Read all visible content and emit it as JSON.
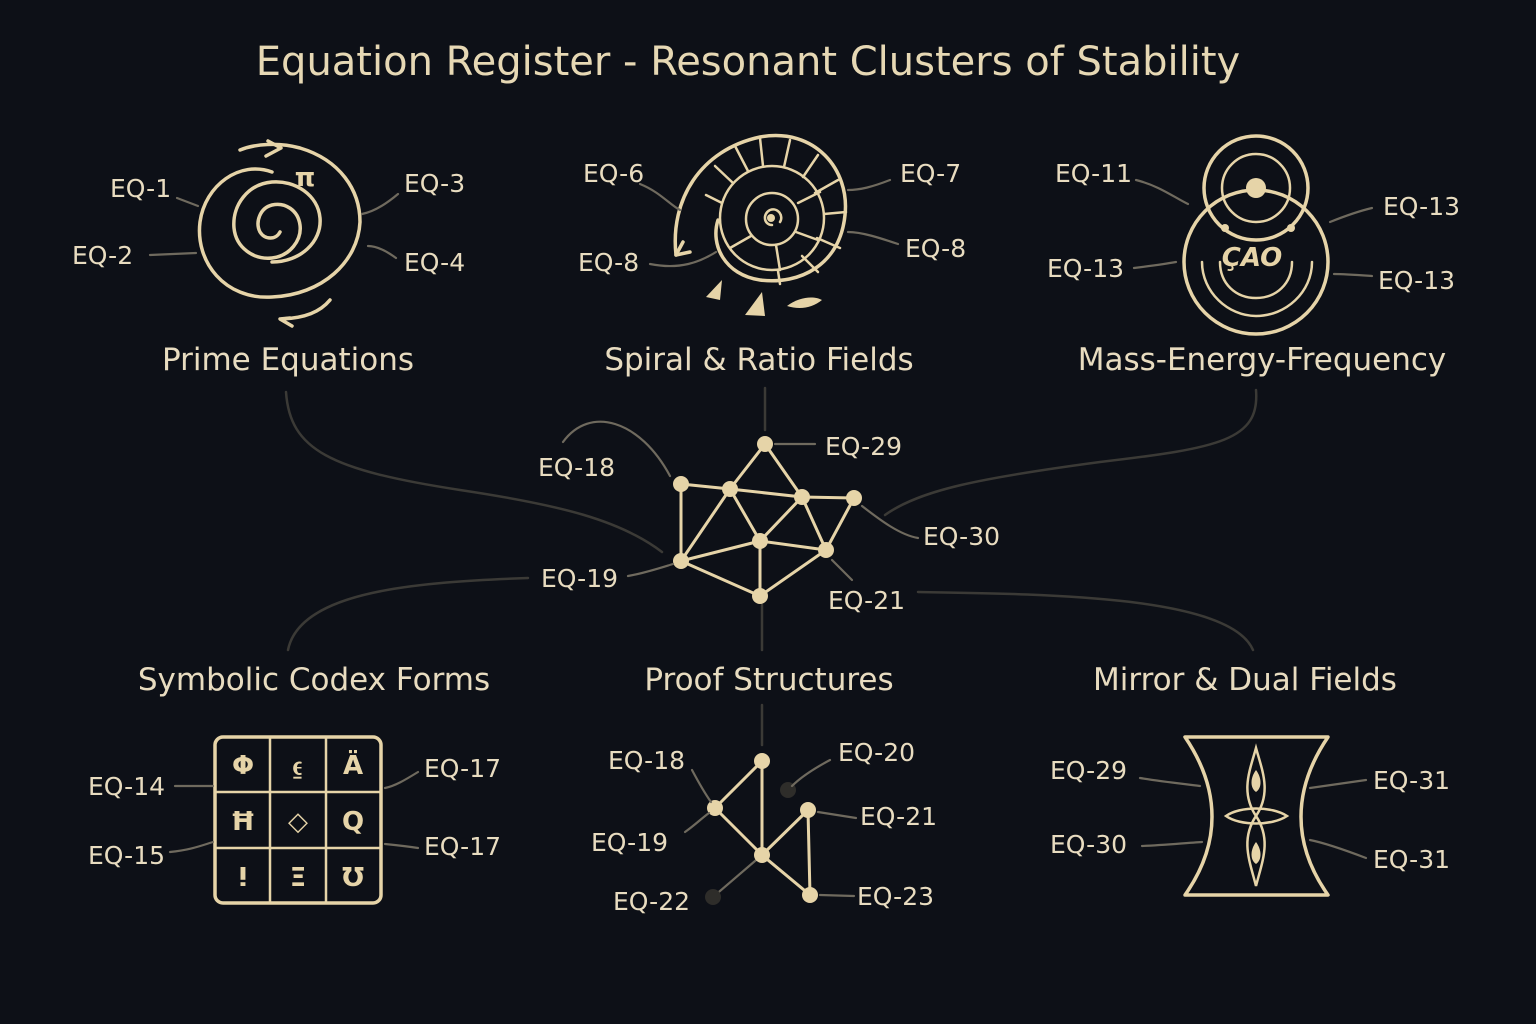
{
  "title": "Equation Register - Resonant Clusters of Stability",
  "clusters": {
    "prime": {
      "title": "Prime Equations",
      "symbol": "π",
      "labels": [
        "EQ-1",
        "EQ-2",
        "EQ-3",
        "EQ-4"
      ]
    },
    "spiral": {
      "title": "Spiral & Ratio Fields",
      "labels": [
        "EQ-6",
        "EQ-8",
        "EQ-7",
        "EQ-8"
      ]
    },
    "mass": {
      "title": "Mass-Energy-Frequency",
      "inner_text": "ÇAO",
      "labels": [
        "EQ-11",
        "EQ-13",
        "EQ-13",
        "EQ-13"
      ]
    },
    "central": {
      "labels": [
        "EQ-18",
        "EQ-29",
        "EQ-30",
        "EQ-19",
        "EQ-21"
      ]
    },
    "codex": {
      "title": "Symbolic Codex Forms",
      "glyphs": [
        "Φ",
        "⍷",
        "Ä",
        "Ħ",
        "◇",
        "Q",
        "ⵑ",
        "Ξ",
        "Ʊ"
      ],
      "labels": [
        "EQ-14",
        "EQ-15",
        "EQ-17",
        "EQ-17"
      ]
    },
    "proof": {
      "title": "Proof Structures",
      "labels": [
        "EQ-18",
        "EQ-19",
        "EQ-22",
        "EQ-20",
        "EQ-21",
        "EQ-23"
      ]
    },
    "mirror": {
      "title": "Mirror & Dual Fields",
      "labels": [
        "EQ-29",
        "EQ-30",
        "EQ-31",
        "EQ-31"
      ]
    }
  },
  "colors": {
    "background": "#0d1017",
    "accent": "#e6d4a8",
    "text": "#e8dcc0",
    "connector": "#3b3a36"
  }
}
